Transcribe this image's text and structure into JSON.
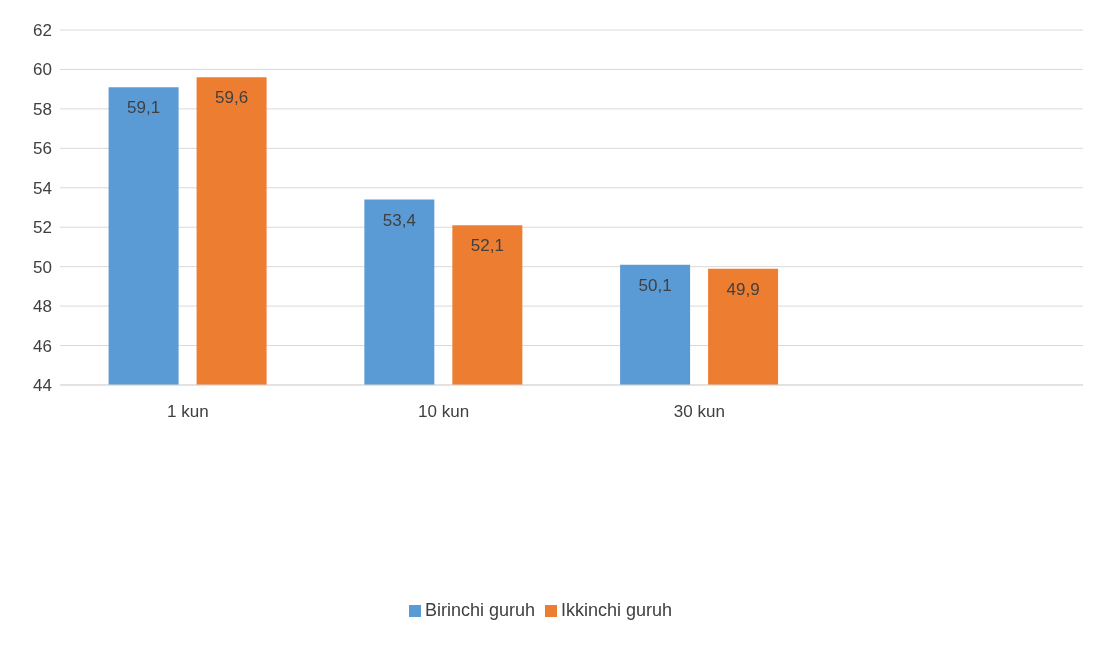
{
  "chart_data": {
    "type": "bar",
    "categories": [
      "1 kun",
      "10 kun",
      "30 kun",
      null
    ],
    "series": [
      {
        "name": "Birinchi guruh",
        "color": "#5b9bd5",
        "values": [
          59.1,
          53.4,
          50.1,
          null
        ],
        "value_labels": [
          "59,1",
          "53,4",
          "50,1",
          null
        ]
      },
      {
        "name": "Ikkinchi guruh",
        "color": "#ed7d31",
        "values": [
          59.6,
          52.1,
          49.9,
          null
        ],
        "value_labels": [
          "59,6",
          "52,1",
          "49,9",
          null
        ]
      }
    ],
    "ylim": [
      44,
      62
    ],
    "yticks": [
      44,
      46,
      48,
      50,
      52,
      54,
      56,
      58,
      60,
      62
    ],
    "grid": "y",
    "legend": "bottom"
  }
}
